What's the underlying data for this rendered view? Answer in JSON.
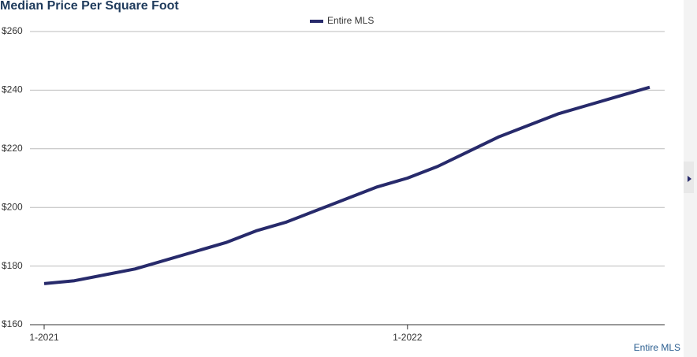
{
  "chart_data": {
    "type": "line",
    "title": "Median Price Per Square Foot",
    "categories": [
      "1-2021",
      null,
      null,
      null,
      null,
      null,
      null,
      null,
      null,
      null,
      null,
      null,
      "1-2022",
      null,
      null,
      null,
      null,
      null,
      null,
      null,
      null
    ],
    "series": [
      {
        "name": "Entire MLS",
        "color": "#272a6b",
        "values": [
          174,
          175,
          177,
          179,
          182,
          185,
          188,
          192,
          195,
          199,
          203,
          207,
          210,
          214,
          219,
          224,
          228,
          232,
          235,
          238,
          241
        ]
      }
    ],
    "ylim": [
      160,
      260
    ],
    "yticks": [
      {
        "value": 160,
        "label": "$160"
      },
      {
        "value": 180,
        "label": "$180"
      },
      {
        "value": 200,
        "label": "$200"
      },
      {
        "value": 220,
        "label": "$220"
      },
      {
        "value": 240,
        "label": "$240"
      },
      {
        "value": 260,
        "label": "$260"
      }
    ],
    "grid": true,
    "legend": "top",
    "footer_label": "Entire MLS"
  }
}
